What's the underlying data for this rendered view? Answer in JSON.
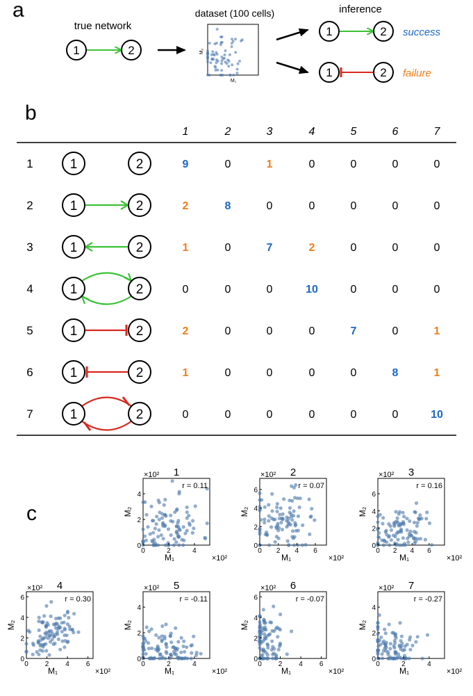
{
  "panel_a": {
    "label": "a",
    "true_network_label": "true network",
    "dataset_label": "dataset (100 cells)",
    "inference_label": "inference",
    "node1": "1",
    "node2": "2",
    "thumb_ylabel": "M₂",
    "thumb_xlabel": "M₁",
    "success_label": "success",
    "failure_label": "failure"
  },
  "panel_b": {
    "label": "b",
    "column_headers": [
      "1",
      "2",
      "3",
      "4",
      "5",
      "6",
      "7"
    ],
    "row_labels": [
      "1",
      "2",
      "3",
      "4",
      "5",
      "6",
      "7"
    ],
    "node1": "1",
    "node2": "2",
    "cells": [
      [
        "9",
        "0",
        "1",
        "0",
        "0",
        "0",
        "0"
      ],
      [
        "2",
        "8",
        "0",
        "0",
        "0",
        "0",
        "0"
      ],
      [
        "1",
        "0",
        "7",
        "2",
        "0",
        "0",
        "0"
      ],
      [
        "0",
        "0",
        "0",
        "10",
        "0",
        "0",
        "0"
      ],
      [
        "2",
        "0",
        "0",
        "0",
        "7",
        "0",
        "1"
      ],
      [
        "1",
        "0",
        "0",
        "0",
        "0",
        "8",
        "1"
      ],
      [
        "0",
        "0",
        "0",
        "0",
        "0",
        "0",
        "10"
      ]
    ]
  },
  "panel_c": {
    "label": "c",
    "xlabel": "M₁",
    "ylabel": "M₂",
    "scale_label": "×10²"
  },
  "colors": {
    "success": "#1b67c9",
    "failure": "#f07d1a",
    "activation": "#3bc236",
    "inhibition": "#d8291d",
    "point": "#4f7bad"
  },
  "chart_data": [
    {
      "type": "scatter",
      "title": "1",
      "r_label": "r = 0.11",
      "xlim": [
        0,
        5.2
      ],
      "ylim": [
        0,
        5.2
      ],
      "xticks": [
        0,
        2,
        4
      ],
      "yticks": [
        0,
        2,
        4
      ],
      "n": 100,
      "xmean": 2.0,
      "xsd": 1.3,
      "ymean": 1.5,
      "ysd": 1.3,
      "corr": 0.11,
      "seed": 11
    },
    {
      "type": "scatter",
      "title": "2",
      "r_label": "r = 0.07",
      "xlim": [
        0,
        7.2
      ],
      "ylim": [
        0,
        7.2
      ],
      "xticks": [
        0,
        2,
        4,
        6
      ],
      "yticks": [
        0,
        2,
        4,
        6
      ],
      "n": 100,
      "xmean": 2.2,
      "xsd": 1.5,
      "ymean": 2.6,
      "ysd": 1.5,
      "corr": 0.07,
      "seed": 22
    },
    {
      "type": "scatter",
      "title": "3",
      "r_label": "r = 0.16",
      "xlim": [
        0,
        7.8
      ],
      "ylim": [
        0,
        7.8
      ],
      "xticks": [
        0,
        2,
        4,
        6
      ],
      "yticks": [
        0,
        2,
        4,
        6
      ],
      "n": 100,
      "xmean": 2.6,
      "xsd": 1.6,
      "ymean": 1.6,
      "ysd": 1.2,
      "corr": 0.16,
      "seed": 33
    },
    {
      "type": "scatter",
      "title": "4",
      "r_label": "r = 0.30",
      "xlim": [
        0,
        6.5
      ],
      "ylim": [
        0,
        6.5
      ],
      "xticks": [
        0,
        2,
        4,
        6
      ],
      "yticks": [
        0,
        2,
        4,
        6
      ],
      "n": 100,
      "xmean": 2.3,
      "xsd": 1.3,
      "ymean": 2.5,
      "ysd": 1.3,
      "corr": 0.3,
      "seed": 44
    },
    {
      "type": "scatter",
      "title": "5",
      "r_label": "r = -0.11",
      "xlim": [
        0,
        5.2
      ],
      "ylim": [
        0,
        5.2
      ],
      "xticks": [
        0,
        2,
        4
      ],
      "yticks": [
        0,
        2,
        4
      ],
      "n": 100,
      "xmean": 1.6,
      "xsd": 1.4,
      "ymean": 0.6,
      "ysd": 0.8,
      "corr": -0.11,
      "seed": 55
    },
    {
      "type": "scatter",
      "title": "6",
      "r_label": "r = -0.07",
      "xlim": [
        0,
        6.5
      ],
      "ylim": [
        0,
        6.5
      ],
      "xticks": [
        0,
        2,
        4,
        6
      ],
      "yticks": [
        0,
        2,
        4,
        6
      ],
      "n": 100,
      "xmean": 0.5,
      "xsd": 0.9,
      "ymean": 1.5,
      "ysd": 1.4,
      "corr": -0.07,
      "seed": 66
    },
    {
      "type": "scatter",
      "title": "7",
      "r_label": "r = -0.27",
      "xlim": [
        0,
        5.2
      ],
      "ylim": [
        0,
        5.2
      ],
      "xticks": [
        0,
        2,
        4
      ],
      "yticks": [
        0,
        2,
        4
      ],
      "n": 100,
      "xmean": 1.0,
      "xsd": 1.2,
      "ymean": 0.8,
      "ysd": 1.1,
      "corr": -0.27,
      "seed": 77
    }
  ]
}
